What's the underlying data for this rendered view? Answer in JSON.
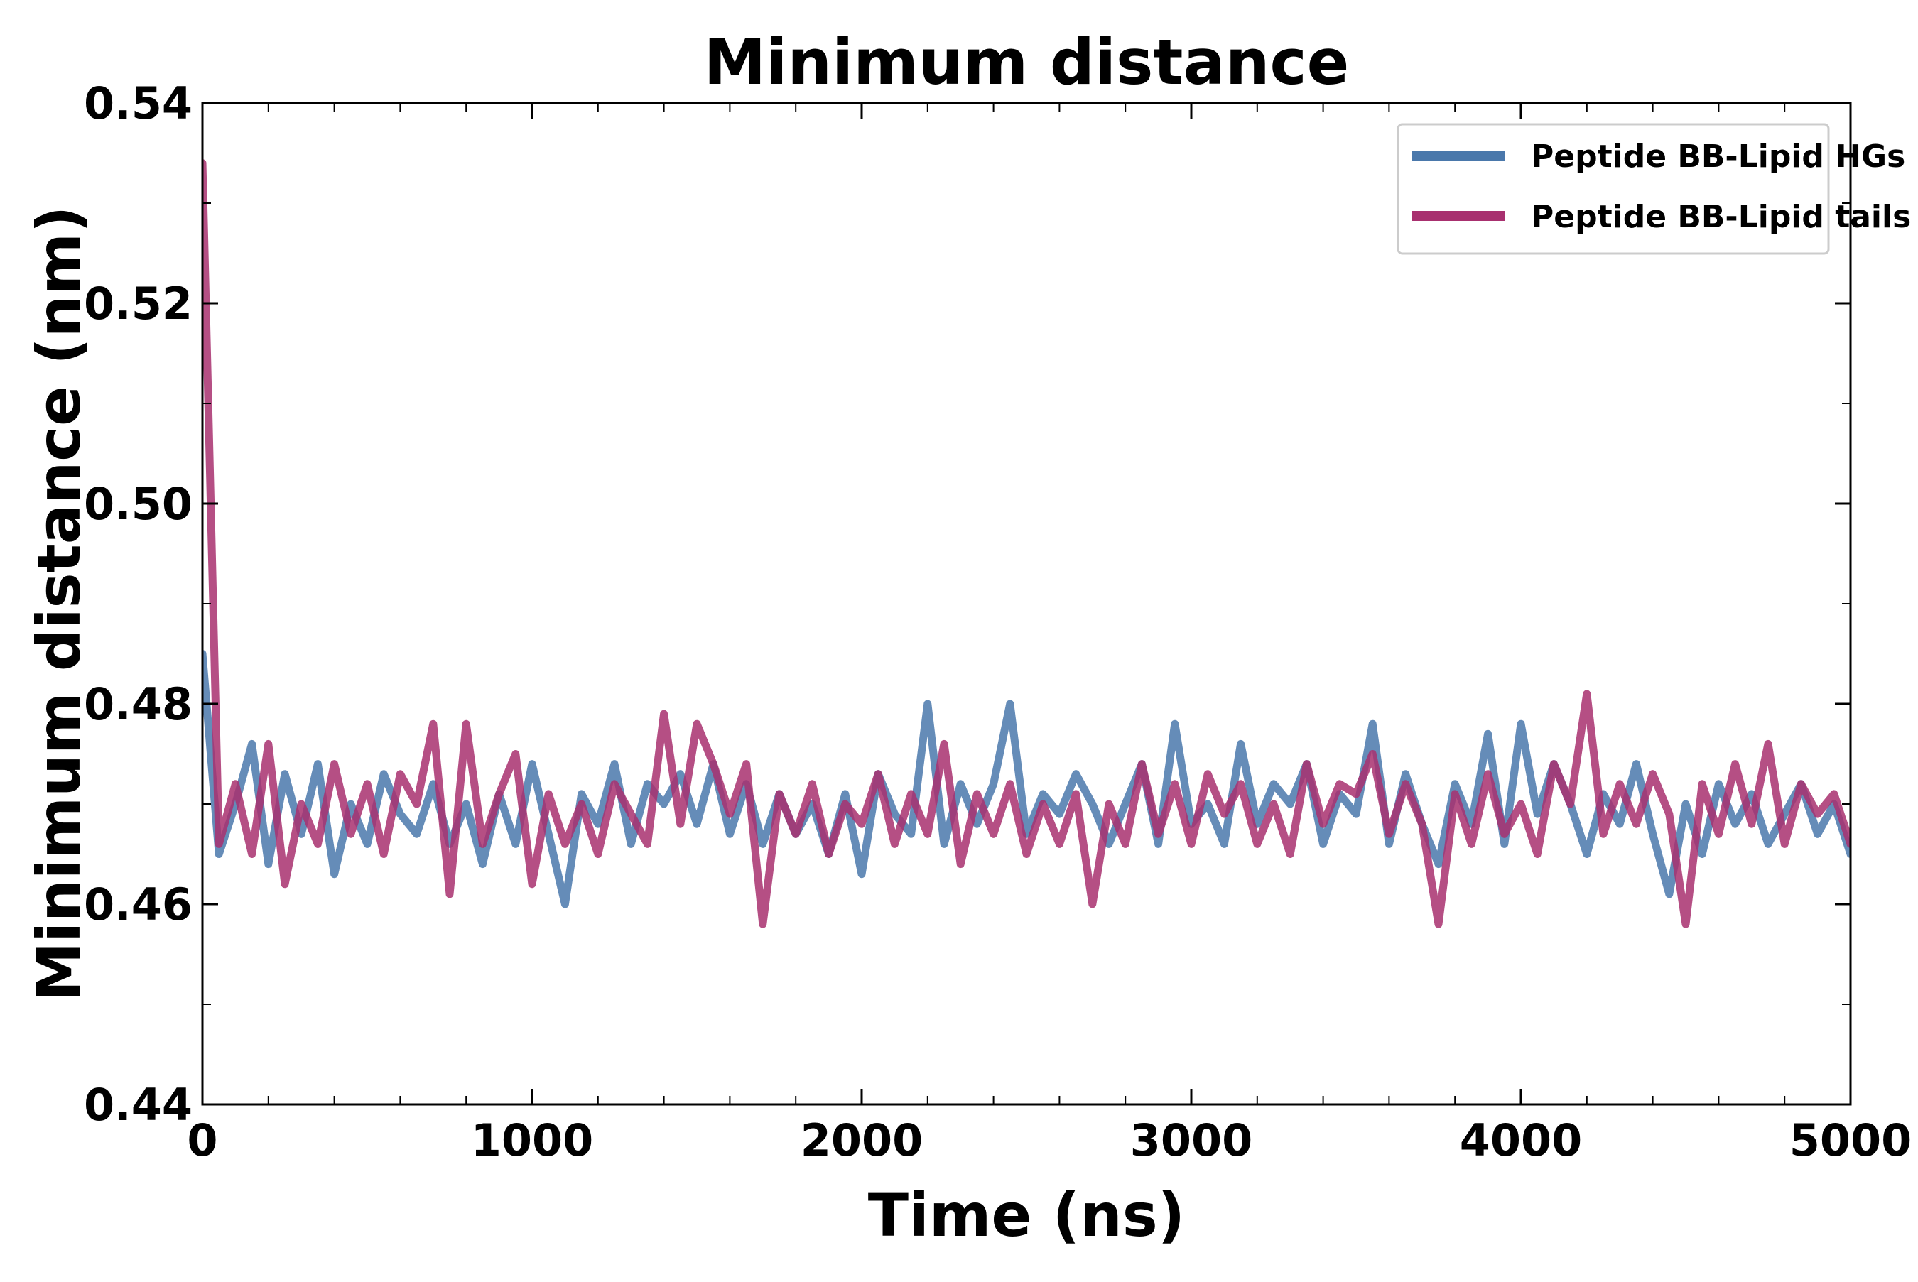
{
  "chart_data": {
    "type": "line",
    "title": "Minimum distance",
    "xlabel": "Time (ns)",
    "ylabel": "Minimum distance (nm)",
    "xlim": [
      0,
      5000
    ],
    "ylim": [
      0.44,
      0.54
    ],
    "xticks": [
      "0",
      "1000",
      "2000",
      "3000",
      "4000",
      "5000"
    ],
    "yticks": [
      "0.44",
      "0.46",
      "0.48",
      "0.50",
      "0.52",
      "0.54"
    ],
    "grid": false,
    "legend_position": "top-right",
    "series": [
      {
        "name": "Peptide BB-Lipid HGs",
        "color": "#4a78ab",
        "x": [
          0,
          50,
          100,
          150,
          200,
          250,
          300,
          350,
          400,
          450,
          500,
          550,
          600,
          650,
          700,
          750,
          800,
          850,
          900,
          950,
          1000,
          1050,
          1100,
          1150,
          1200,
          1250,
          1300,
          1350,
          1400,
          1450,
          1500,
          1550,
          1600,
          1650,
          1700,
          1750,
          1800,
          1850,
          1900,
          1950,
          2000,
          2050,
          2100,
          2150,
          2200,
          2250,
          2300,
          2350,
          2400,
          2450,
          2500,
          2550,
          2600,
          2650,
          2700,
          2750,
          2800,
          2850,
          2900,
          2950,
          3000,
          3050,
          3100,
          3150,
          3200,
          3250,
          3300,
          3350,
          3400,
          3450,
          3500,
          3550,
          3600,
          3650,
          3700,
          3750,
          3800,
          3850,
          3900,
          3950,
          4000,
          4050,
          4100,
          4150,
          4200,
          4250,
          4300,
          4350,
          4400,
          4450,
          4500,
          4550,
          4600,
          4650,
          4700,
          4750,
          4800,
          4850,
          4900,
          4950,
          5000
        ],
        "values": [
          0.485,
          0.465,
          0.47,
          0.476,
          0.464,
          0.473,
          0.467,
          0.474,
          0.463,
          0.47,
          0.466,
          0.473,
          0.469,
          0.467,
          0.472,
          0.466,
          0.47,
          0.464,
          0.471,
          0.466,
          0.474,
          0.467,
          0.46,
          0.471,
          0.468,
          0.474,
          0.466,
          0.472,
          0.47,
          0.473,
          0.468,
          0.474,
          0.467,
          0.472,
          0.466,
          0.471,
          0.467,
          0.47,
          0.465,
          0.471,
          0.463,
          0.473,
          0.469,
          0.467,
          0.48,
          0.466,
          0.472,
          0.468,
          0.472,
          0.48,
          0.467,
          0.471,
          0.469,
          0.473,
          0.47,
          0.466,
          0.47,
          0.474,
          0.466,
          0.478,
          0.468,
          0.47,
          0.466,
          0.476,
          0.468,
          0.472,
          0.47,
          0.474,
          0.466,
          0.471,
          0.469,
          0.478,
          0.466,
          0.473,
          0.468,
          0.464,
          0.472,
          0.468,
          0.477,
          0.466,
          0.478,
          0.469,
          0.474,
          0.47,
          0.465,
          0.471,
          0.468,
          0.474,
          0.467,
          0.461,
          0.47,
          0.465,
          0.472,
          0.468,
          0.471,
          0.466,
          0.469,
          0.472,
          0.467,
          0.47,
          0.465
        ]
      },
      {
        "name": "Peptide BB-Lipid tails",
        "color": "#a8306f",
        "x": [
          0,
          50,
          100,
          150,
          200,
          250,
          300,
          350,
          400,
          450,
          500,
          550,
          600,
          650,
          700,
          750,
          800,
          850,
          900,
          950,
          1000,
          1050,
          1100,
          1150,
          1200,
          1250,
          1300,
          1350,
          1400,
          1450,
          1500,
          1550,
          1600,
          1650,
          1700,
          1750,
          1800,
          1850,
          1900,
          1950,
          2000,
          2050,
          2100,
          2150,
          2200,
          2250,
          2300,
          2350,
          2400,
          2450,
          2500,
          2550,
          2600,
          2650,
          2700,
          2750,
          2800,
          2850,
          2900,
          2950,
          3000,
          3050,
          3100,
          3150,
          3200,
          3250,
          3300,
          3350,
          3400,
          3450,
          3500,
          3550,
          3600,
          3650,
          3700,
          3750,
          3800,
          3850,
          3900,
          3950,
          4000,
          4050,
          4100,
          4150,
          4200,
          4250,
          4300,
          4350,
          4400,
          4450,
          4500,
          4550,
          4600,
          4650,
          4700,
          4750,
          4800,
          4850,
          4900,
          4950,
          5000
        ],
        "values": [
          0.534,
          0.466,
          0.472,
          0.465,
          0.476,
          0.462,
          0.47,
          0.466,
          0.474,
          0.467,
          0.472,
          0.465,
          0.473,
          0.47,
          0.478,
          0.461,
          0.478,
          0.466,
          0.471,
          0.475,
          0.462,
          0.471,
          0.466,
          0.47,
          0.465,
          0.472,
          0.469,
          0.466,
          0.479,
          0.468,
          0.478,
          0.474,
          0.469,
          0.474,
          0.458,
          0.471,
          0.467,
          0.472,
          0.465,
          0.47,
          0.468,
          0.473,
          0.466,
          0.471,
          0.467,
          0.476,
          0.464,
          0.471,
          0.467,
          0.472,
          0.465,
          0.47,
          0.466,
          0.471,
          0.46,
          0.47,
          0.466,
          0.474,
          0.467,
          0.472,
          0.466,
          0.473,
          0.469,
          0.472,
          0.466,
          0.47,
          0.465,
          0.474,
          0.468,
          0.472,
          0.471,
          0.475,
          0.467,
          0.472,
          0.468,
          0.458,
          0.471,
          0.466,
          0.473,
          0.467,
          0.47,
          0.465,
          0.474,
          0.47,
          0.481,
          0.467,
          0.472,
          0.468,
          0.473,
          0.469,
          0.458,
          0.472,
          0.467,
          0.474,
          0.468,
          0.476,
          0.466,
          0.472,
          0.469,
          0.471,
          0.466
        ]
      }
    ]
  }
}
